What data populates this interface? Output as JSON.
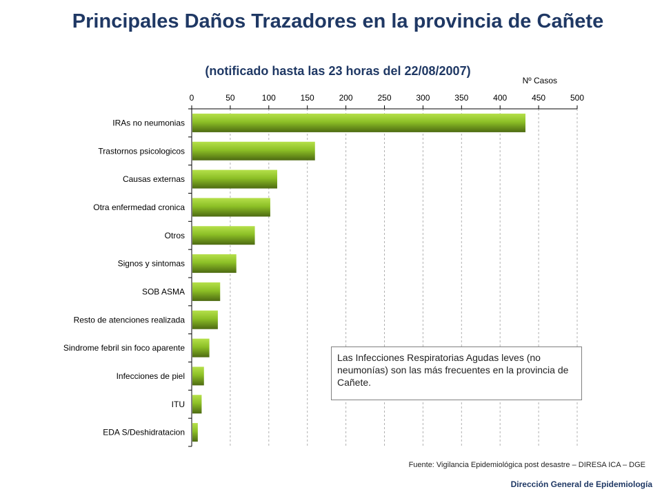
{
  "title": "Principales Daños Trazadores en la provincia de Cañete",
  "subtitle": "(notificado hasta las 23 horas del 22/08/2007)",
  "note": "Las Infecciones Respiratorias Agudas leves (no neumonías) son las más frecuentes en la provincia de Cañete.",
  "source": "Fuente: Vigilancia Epidemiológica post desastre – DIRESA ICA – DGE",
  "footer": "Dirección General de Epidemiología",
  "colors": {
    "title": "#1f3864",
    "bar_light": "#9acd32",
    "bar_dark": "#4d6a12"
  },
  "chart_data": {
    "type": "bar",
    "orientation": "horizontal",
    "title": "Principales Daños Trazadores en la provincia de Cañete",
    "xlabel": "Nº Casos",
    "ylabel": "",
    "xlim": [
      0,
      500
    ],
    "xticks": [
      0,
      50,
      100,
      150,
      200,
      250,
      300,
      350,
      400,
      450,
      500
    ],
    "x_axis_position": "top",
    "grid": "vertical dashed",
    "categories": [
      "IRAs no neumonias",
      "Trastornos psicologicos",
      "Causas externas",
      "Otra enfermedad cronica",
      "Otros",
      "Signos y sintomas",
      "SOB ASMA",
      "Resto de atenciones realizada",
      "Sindrome febril sin foco aparente",
      "Infecciones de piel",
      "ITU",
      "EDA S/Deshidratacion"
    ],
    "values": [
      432,
      159,
      110,
      101,
      81,
      57,
      36,
      33,
      22,
      15,
      12,
      7
    ]
  }
}
